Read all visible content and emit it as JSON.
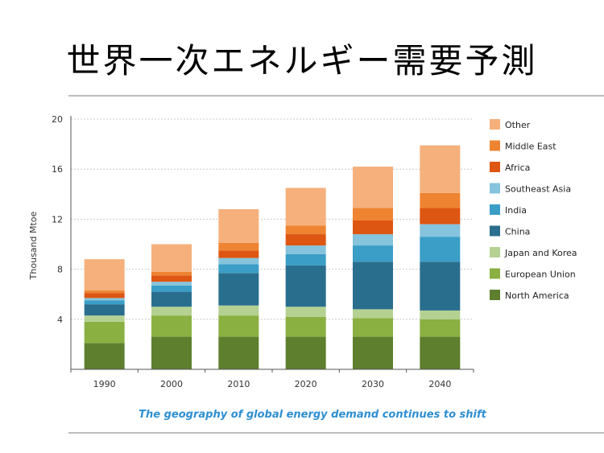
{
  "page_title": "世界一次エネルギー需要予測",
  "chart_data": {
    "type": "bar",
    "stacked": true,
    "ylabel": "Thousand Mtoe",
    "xlabel": "",
    "ylim": [
      0,
      20
    ],
    "yticks": [
      4,
      8,
      12,
      16,
      20
    ],
    "grid": true,
    "legend_position": "right",
    "caption": "The geography of global energy demand continues to shift",
    "categories": [
      "1990",
      "2000",
      "2010",
      "2020",
      "2030",
      "2040"
    ],
    "series": [
      {
        "name": "North America",
        "color": "#5e7f2e",
        "values": [
          2.1,
          2.6,
          2.6,
          2.6,
          2.6,
          2.6
        ]
      },
      {
        "name": "European Union",
        "color": "#8ab042",
        "values": [
          1.7,
          1.7,
          1.7,
          1.6,
          1.5,
          1.4
        ]
      },
      {
        "name": "Japan and Korea",
        "color": "#b5d192",
        "values": [
          0.5,
          0.7,
          0.8,
          0.8,
          0.7,
          0.7
        ]
      },
      {
        "name": "China",
        "color": "#2a6e8e",
        "values": [
          0.9,
          1.2,
          2.6,
          3.3,
          3.8,
          3.9
        ]
      },
      {
        "name": "India",
        "color": "#3a9ec7",
        "values": [
          0.3,
          0.5,
          0.7,
          0.9,
          1.3,
          2.0
        ]
      },
      {
        "name": "Southeast Asia",
        "color": "#86c3dc",
        "values": [
          0.2,
          0.3,
          0.5,
          0.7,
          0.9,
          1.0
        ]
      },
      {
        "name": "Africa",
        "color": "#dd5612",
        "values": [
          0.4,
          0.5,
          0.6,
          0.9,
          1.1,
          1.3
        ]
      },
      {
        "name": "Middle East",
        "color": "#ee8432",
        "values": [
          0.2,
          0.3,
          0.6,
          0.7,
          1.0,
          1.2
        ]
      },
      {
        "name": "Other",
        "color": "#f5b07c",
        "values": [
          2.5,
          2.2,
          2.7,
          3.0,
          3.3,
          3.8
        ]
      }
    ]
  }
}
